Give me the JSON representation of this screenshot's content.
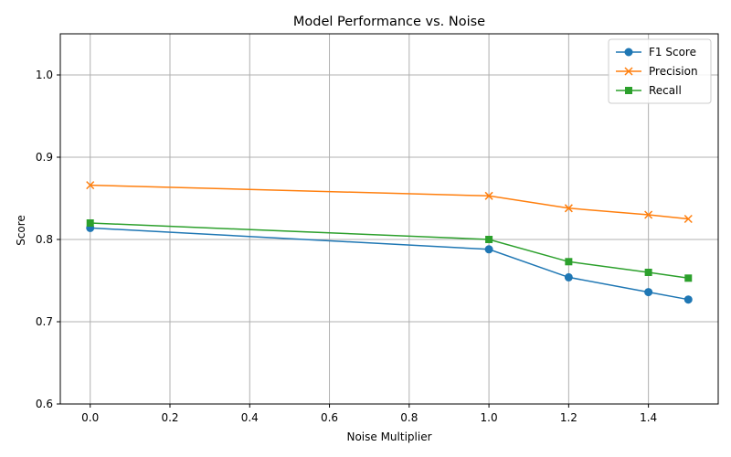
{
  "chart_data": {
    "type": "line",
    "title": "Model Performance vs. Noise",
    "xlabel": "Noise Multiplier",
    "ylabel": "Score",
    "xlim": [
      -0.075,
      1.575
    ],
    "ylim": [
      0.6,
      1.05
    ],
    "xticks": [
      "0.0",
      "0.2",
      "0.4",
      "0.6",
      "0.8",
      "1.0",
      "1.2",
      "1.4"
    ],
    "yticks": [
      "0.6",
      "0.7",
      "0.8",
      "0.9",
      "1.0"
    ],
    "grid": true,
    "legend_position": "top-right",
    "x": [
      0.0,
      1.0,
      1.2,
      1.4,
      1.5
    ],
    "series": [
      {
        "name": "F1 Score",
        "color": "#1f77b4",
        "marker": "circle",
        "values": [
          0.814,
          0.788,
          0.754,
          0.736,
          0.727
        ]
      },
      {
        "name": "Precision",
        "color": "#ff7f0e",
        "marker": "x",
        "values": [
          0.866,
          0.853,
          0.838,
          0.83,
          0.825
        ]
      },
      {
        "name": "Recall",
        "color": "#2ca02c",
        "marker": "square",
        "values": [
          0.82,
          0.8,
          0.773,
          0.76,
          0.753
        ]
      }
    ]
  }
}
